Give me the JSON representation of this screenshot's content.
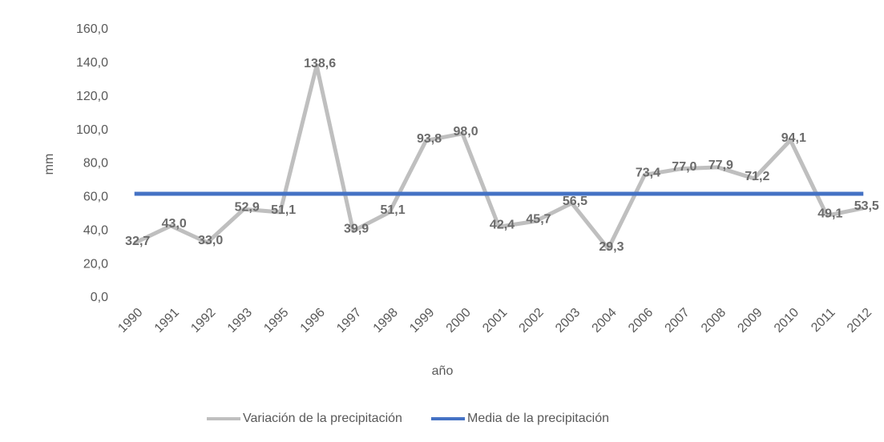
{
  "chart_data": {
    "type": "line",
    "x_label": "año",
    "y_label": "mm",
    "categories": [
      "1990",
      "1991",
      "1992",
      "1993",
      "1995",
      "1996",
      "1997",
      "1998",
      "1999",
      "2000",
      "2001",
      "2002",
      "2003",
      "2004",
      "2006",
      "2007",
      "2008",
      "2009",
      "2010",
      "2011",
      "2012"
    ],
    "series": [
      {
        "name": "Variación de la precipitación",
        "color": "#bfbfbf",
        "values": [
          32.7,
          43.0,
          33.0,
          52.9,
          51.1,
          138.6,
          39.9,
          51.1,
          93.8,
          98.0,
          42.4,
          45.7,
          56.5,
          29.3,
          73.4,
          77.0,
          77.9,
          71.2,
          94.1,
          49.1,
          53.5
        ],
        "value_labels": [
          "32,7",
          "43,0",
          "33,0",
          "52,9",
          "51,1",
          "138,6",
          "39,9",
          "51,1",
          "93,8",
          "98,0",
          "42,4",
          "45,7",
          "56,5",
          "29,3",
          "73,4",
          "77,0",
          "77,9",
          "71,2",
          "94,1",
          "49,1",
          "53,5"
        ]
      },
      {
        "name": "Media de la precipitación",
        "color": "#4472c4",
        "values": [
          62.1,
          62.1,
          62.1,
          62.1,
          62.1,
          62.1,
          62.1,
          62.1,
          62.1,
          62.1,
          62.1,
          62.1,
          62.1,
          62.1,
          62.1,
          62.1,
          62.1,
          62.1,
          62.1,
          62.1,
          62.1
        ]
      }
    ],
    "ylim": [
      0,
      160
    ],
    "yticks": [
      {
        "value": 0,
        "label": "0,0"
      },
      {
        "value": 20,
        "label": "20,0"
      },
      {
        "value": 40,
        "label": "40,0"
      },
      {
        "value": 60,
        "label": "60,0"
      },
      {
        "value": 80,
        "label": "80,0"
      },
      {
        "value": 100,
        "label": "100,0"
      },
      {
        "value": 120,
        "label": "120,0"
      },
      {
        "value": 140,
        "label": "140,0"
      },
      {
        "value": 160,
        "label": "160,0"
      }
    ],
    "grid": false,
    "legend": "bottom"
  }
}
